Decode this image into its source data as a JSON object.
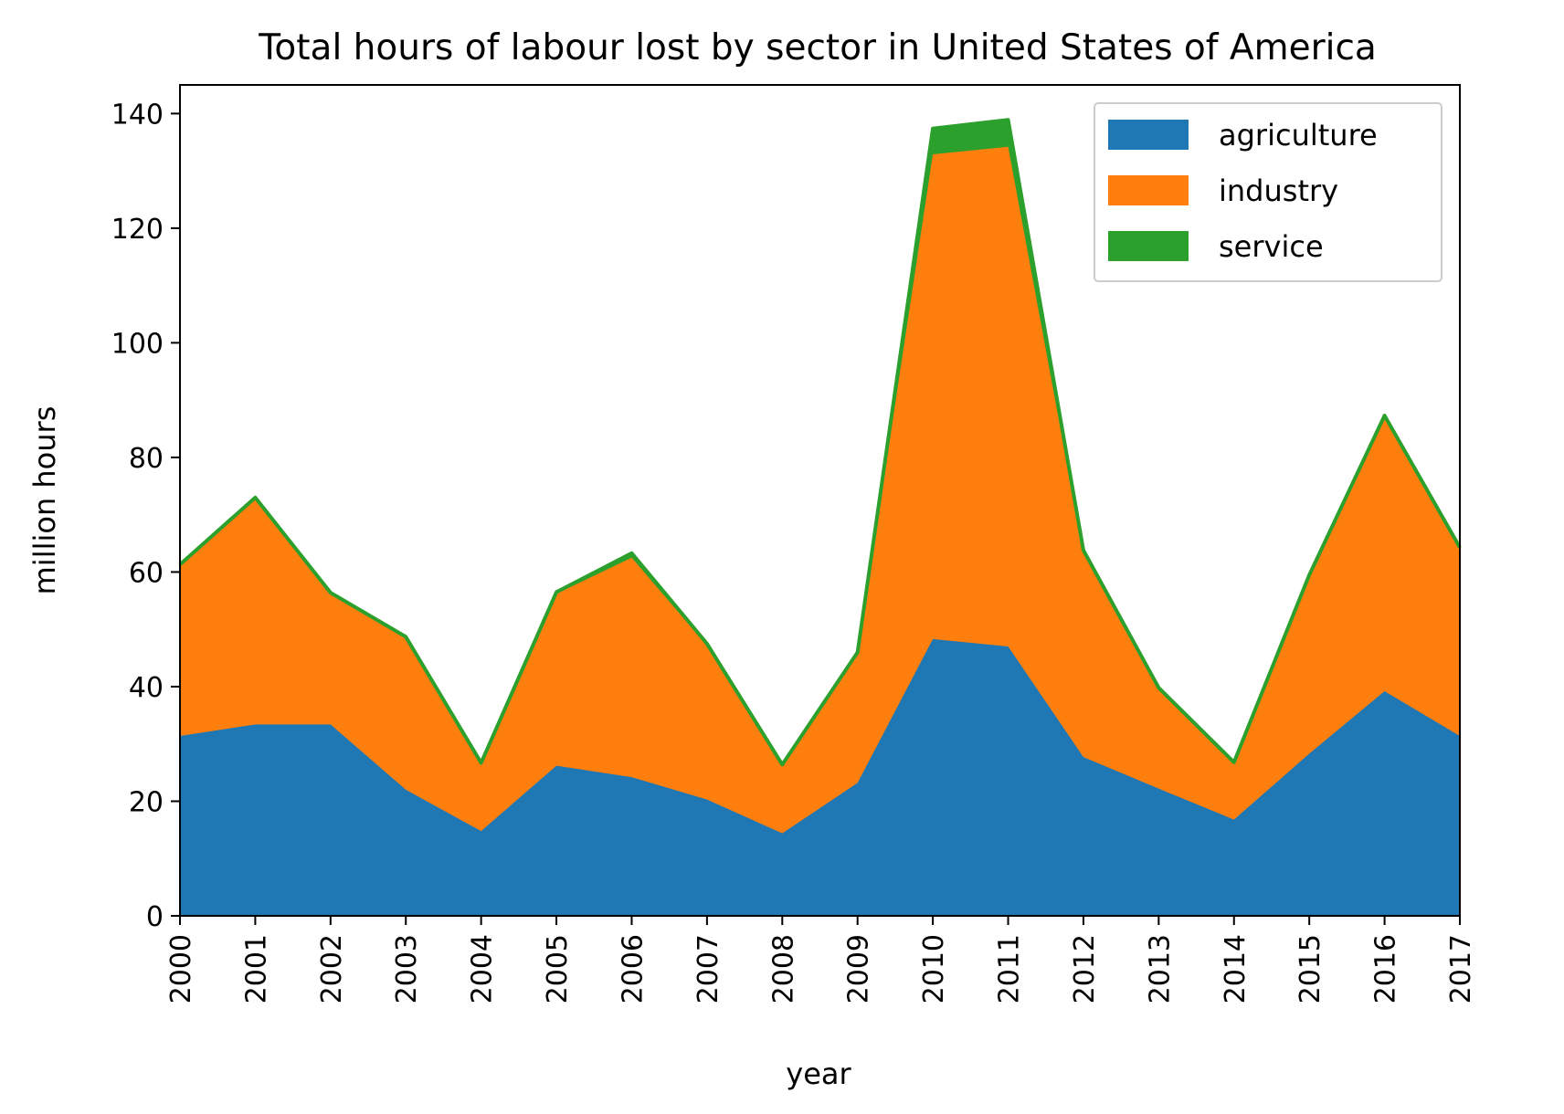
{
  "chart_data": {
    "type": "area",
    "title": "Total hours of labour lost by sector in United States of America",
    "xlabel": "year",
    "ylabel": "million hours",
    "x": [
      "2000",
      "2001",
      "2002",
      "2003",
      "2004",
      "2005",
      "2006",
      "2007",
      "2008",
      "2009",
      "2010",
      "2011",
      "2012",
      "2013",
      "2014",
      "2015",
      "2016",
      "2017"
    ],
    "ylim": [
      0,
      145
    ],
    "yticks": [
      "0",
      "20",
      "40",
      "60",
      "80",
      "100",
      "120",
      "140"
    ],
    "stacked": true,
    "grid": false,
    "legend_position": "top-right",
    "series": [
      {
        "name": "agriculture",
        "color": "#1f77b4",
        "values": [
          31.4,
          33.4,
          33.4,
          22.0,
          14.8,
          26.2,
          24.2,
          20.3,
          14.4,
          23.2,
          48.3,
          47.0,
          27.7,
          22.2,
          16.8,
          28.3,
          39.2,
          31.4
        ]
      },
      {
        "name": "industry",
        "color": "#ff7f0e",
        "values": [
          29.6,
          39.3,
          22.8,
          26.5,
          11.8,
          30.0,
          38.3,
          26.9,
          11.9,
          22.6,
          84.6,
          87.2,
          35.8,
          17.4,
          9.9,
          30.9,
          47.6,
          32.6
        ]
      },
      {
        "name": "service",
        "color": "#2ca02c",
        "values": [
          0.3,
          0.3,
          0.2,
          0.2,
          0.1,
          0.3,
          0.8,
          0.3,
          0.1,
          0.2,
          4.5,
          4.7,
          0.3,
          0.2,
          0.1,
          0.3,
          0.5,
          0.3
        ]
      }
    ]
  }
}
